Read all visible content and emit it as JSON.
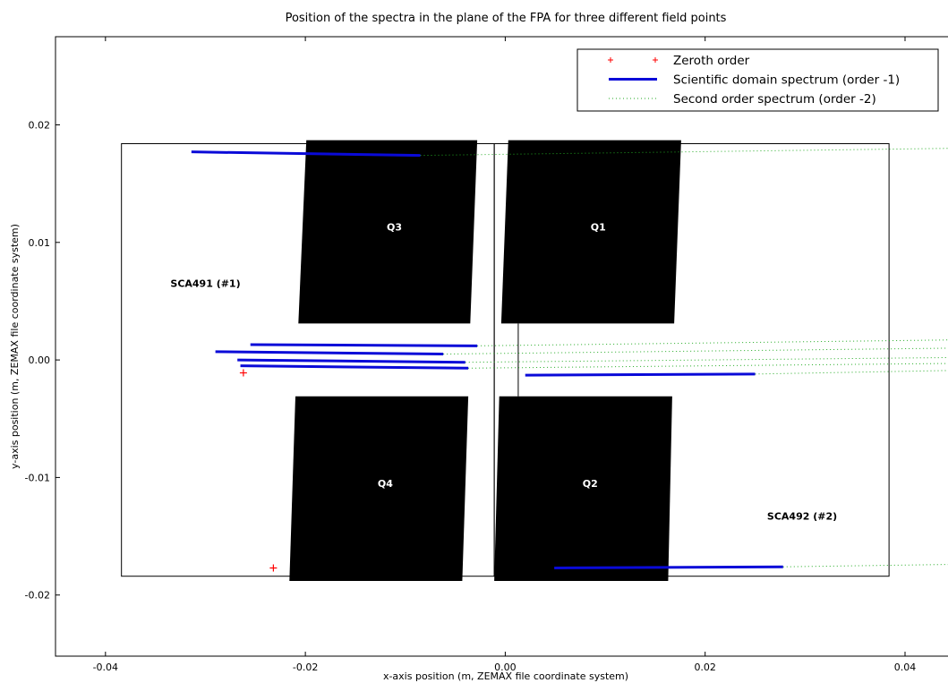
{
  "chart_data": {
    "type": "line",
    "title": "Position of the spectra in the plane of the FPA for three different field points",
    "xlabel": "x-axis position (m, ZEMAX file coordinate system)",
    "ylabel": "y-axis position (m, ZEMAX file coordinate system)",
    "xlim": [
      -0.045,
      0.0443
    ],
    "ylim": [
      -0.0252,
      0.0275
    ],
    "xticks": [
      -0.04,
      -0.02,
      0.0,
      0.02,
      0.04
    ],
    "xtick_labels": [
      "-0.04",
      "-0.02",
      "0.00",
      "0.02",
      "0.04"
    ],
    "yticks": [
      -0.02,
      -0.01,
      0.0,
      0.01,
      0.02
    ],
    "ytick_labels": [
      "-0.02",
      "-0.01",
      "0.00",
      "0.01",
      "0.02"
    ],
    "grid": false,
    "legend_position": "top-right",
    "legend": [
      {
        "label": "Zeroth order",
        "style": "marker",
        "color": "#ff0000"
      },
      {
        "label": "Scientific domain spectrum (order -1)",
        "style": "solid",
        "color": "#0000dd"
      },
      {
        "label": "Second order spectrum (order -2)",
        "style": "dotted",
        "color": "#22aa22"
      }
    ],
    "sca_outlines": [
      {
        "label": "SCA491 (#1)",
        "x": [
          -0.0384,
          -0.0011
        ],
        "y": [
          -0.0184,
          0.0184
        ],
        "label_x": -0.0335,
        "label_y": 0.0065
      },
      {
        "label": "SCA492 (#2)",
        "x": [
          -0.0011,
          0.0384
        ],
        "y": [
          -0.0184,
          0.0184
        ],
        "label_x": 0.0262,
        "label_y": -0.0133
      }
    ],
    "quadrants": [
      {
        "label": "Q3",
        "corners": [
          [
            -0.0199,
            0.0187
          ],
          [
            -0.0028,
            0.0187
          ],
          [
            -0.0035,
            0.0031
          ],
          [
            -0.0207,
            0.0031
          ]
        ],
        "label_x": -0.0111,
        "label_y": 0.0113
      },
      {
        "label": "Q1",
        "corners": [
          [
            0.0003,
            0.0187
          ],
          [
            0.0176,
            0.0187
          ],
          [
            0.0169,
            0.0031
          ],
          [
            -0.0004,
            0.0031
          ]
        ],
        "label_x": 0.0093,
        "label_y": 0.0113
      },
      {
        "label": "Q4",
        "corners": [
          [
            -0.021,
            -0.0031
          ],
          [
            -0.0037,
            -0.0031
          ],
          [
            -0.0043,
            -0.0188
          ],
          [
            -0.0216,
            -0.0188
          ]
        ],
        "label_x": -0.012,
        "label_y": -0.0105
      },
      {
        "label": "Q2",
        "corners": [
          [
            -0.0006,
            -0.0031
          ],
          [
            0.0167,
            -0.0031
          ],
          [
            0.0163,
            -0.0188
          ],
          [
            -0.0011,
            -0.0188
          ]
        ],
        "label_x": 0.0085,
        "label_y": -0.0105
      }
    ],
    "gap_line": {
      "x": [
        0.0013,
        0.0013
      ],
      "y": [
        0.0031,
        -0.0031
      ]
    },
    "series": [
      {
        "kind": "order-1",
        "x": [
          -0.0314,
          -0.0085
        ],
        "y": [
          0.0177,
          0.0174
        ]
      },
      {
        "kind": "order-1",
        "x": [
          -0.0255,
          -0.0028
        ],
        "y": [
          0.0013,
          0.0012
        ]
      },
      {
        "kind": "order-1",
        "x": [
          -0.029,
          -0.0062
        ],
        "y": [
          0.0007,
          0.0005
        ]
      },
      {
        "kind": "order-1",
        "x": [
          -0.0268,
          -0.004
        ],
        "y": [
          0.0,
          -0.0002
        ]
      },
      {
        "kind": "order-1",
        "x": [
          -0.0265,
          -0.0037
        ],
        "y": [
          -0.0005,
          -0.0007
        ]
      },
      {
        "kind": "order-1",
        "x": [
          0.002,
          0.025
        ],
        "y": [
          -0.0013,
          -0.0012
        ]
      },
      {
        "kind": "order-1",
        "x": [
          0.0049,
          0.0278
        ],
        "y": [
          -0.0177,
          -0.0176
        ]
      },
      {
        "kind": "order-2",
        "x": [
          -0.0085,
          0.0443
        ],
        "y": [
          0.0174,
          0.018
        ]
      },
      {
        "kind": "order-2",
        "x": [
          -0.0028,
          0.0443
        ],
        "y": [
          0.0012,
          0.0017
        ]
      },
      {
        "kind": "order-2",
        "x": [
          -0.0062,
          0.0443
        ],
        "y": [
          0.0005,
          0.001
        ]
      },
      {
        "kind": "order-2",
        "x": [
          -0.004,
          0.0443
        ],
        "y": [
          -0.0002,
          0.0002
        ]
      },
      {
        "kind": "order-2",
        "x": [
          -0.0037,
          0.0443
        ],
        "y": [
          -0.0007,
          -0.0003
        ]
      },
      {
        "kind": "order-2",
        "x": [
          0.025,
          0.0443
        ],
        "y": [
          -0.0012,
          -0.0009
        ]
      },
      {
        "kind": "order-2",
        "x": [
          0.0278,
          0.0443
        ],
        "y": [
          -0.0176,
          -0.0174
        ]
      }
    ],
    "zeroth_order_points": [
      {
        "x": -0.0262,
        "y": -0.0011
      },
      {
        "x": -0.0232,
        "y": -0.0177
      }
    ]
  }
}
